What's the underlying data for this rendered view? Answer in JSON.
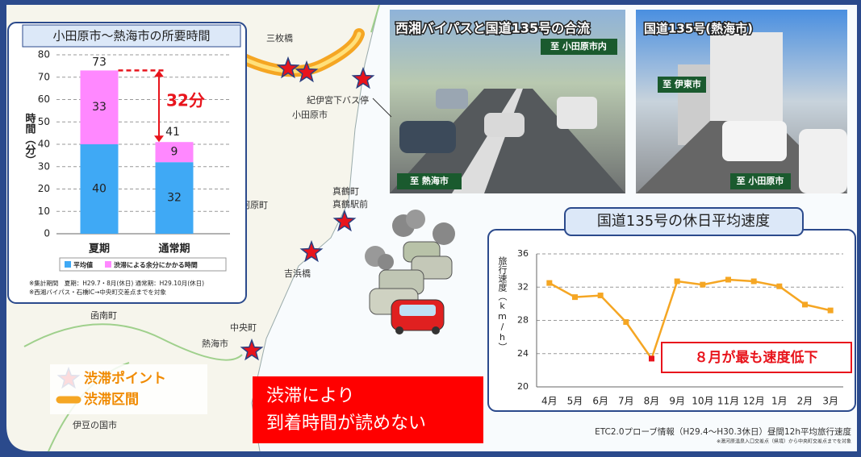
{
  "map": {
    "labels": [
      "三枚橋",
      "紀伊宮下バス停",
      "小田原市",
      "湯河原町",
      "真鶴町",
      "真鶴駅前",
      "吉浜橋",
      "函南町",
      "中央町",
      "熱海市",
      "伊豆の国市"
    ],
    "legend": {
      "point": "渋滞ポイント",
      "section": "渋滞区間"
    }
  },
  "photos": [
    {
      "caption": "西湘バイパスと国道135号の合流",
      "signs": [
        "至 小田原市内",
        "至 熱海市"
      ]
    },
    {
      "caption": "国道135号(熱海市)",
      "signs": [
        "至 伊東市",
        "至 小田原市"
      ]
    }
  ],
  "callout": {
    "lines": [
      "渋滞により",
      "到着時間が読めない"
    ]
  },
  "chart_data": [
    {
      "type": "bar",
      "stacked": true,
      "title": "小田原市～熱海市の所要時間",
      "y_label": "時間（分）",
      "categories": [
        "夏期",
        "通常期"
      ],
      "series": [
        {
          "name": "平均値",
          "color": "#3fa9f5",
          "values": [
            40,
            32
          ]
        },
        {
          "name": "渋滞による余分にかかる時間",
          "color": "#ff88ff",
          "values": [
            33,
            9
          ]
        }
      ],
      "totals": [
        73,
        41
      ],
      "ylim": [
        0,
        80
      ],
      "yticks": [
        0,
        10,
        20,
        30,
        40,
        50,
        60,
        70,
        80
      ],
      "grid": true,
      "annotation": "32分",
      "notes": [
        "※集計期間　夏期：H29.7・8月(休日) 通常期：H29.10月(休日)",
        "※西湘バイパス・石橋IC→中央町交差点までを対象"
      ]
    },
    {
      "type": "line",
      "title": "国道135号の休日平均速度",
      "y_label": "旅行速度（km/h）",
      "categories": [
        "4月",
        "5月",
        "6月",
        "7月",
        "8月",
        "9月",
        "10月",
        "11月",
        "12月",
        "1月",
        "2月",
        "3月"
      ],
      "values": [
        32.5,
        30.8,
        31.0,
        27.8,
        23.4,
        32.7,
        32.3,
        32.9,
        32.7,
        32.1,
        29.9,
        29.2
      ],
      "color": "#f5a623",
      "point_colors": [
        "#f5a623",
        "#f5a623",
        "#f5a623",
        "#f5a623",
        "#e8141c",
        "#f5a623",
        "#f5a623",
        "#f5a623",
        "#f5a623",
        "#f5a623",
        "#f5a623",
        "#f5a623"
      ],
      "ylim": [
        20,
        36
      ],
      "yticks": [
        20,
        24,
        28,
        32,
        36
      ],
      "grid": true,
      "annotation": "８月が最も速度低下",
      "source": "ETC2.0プローブ情報（H29.4～H30.3休日）昼間12h平均旅行速度",
      "source_note": "※湯河原温泉入口交差点（県境）から中央町交差点までを対象"
    }
  ]
}
